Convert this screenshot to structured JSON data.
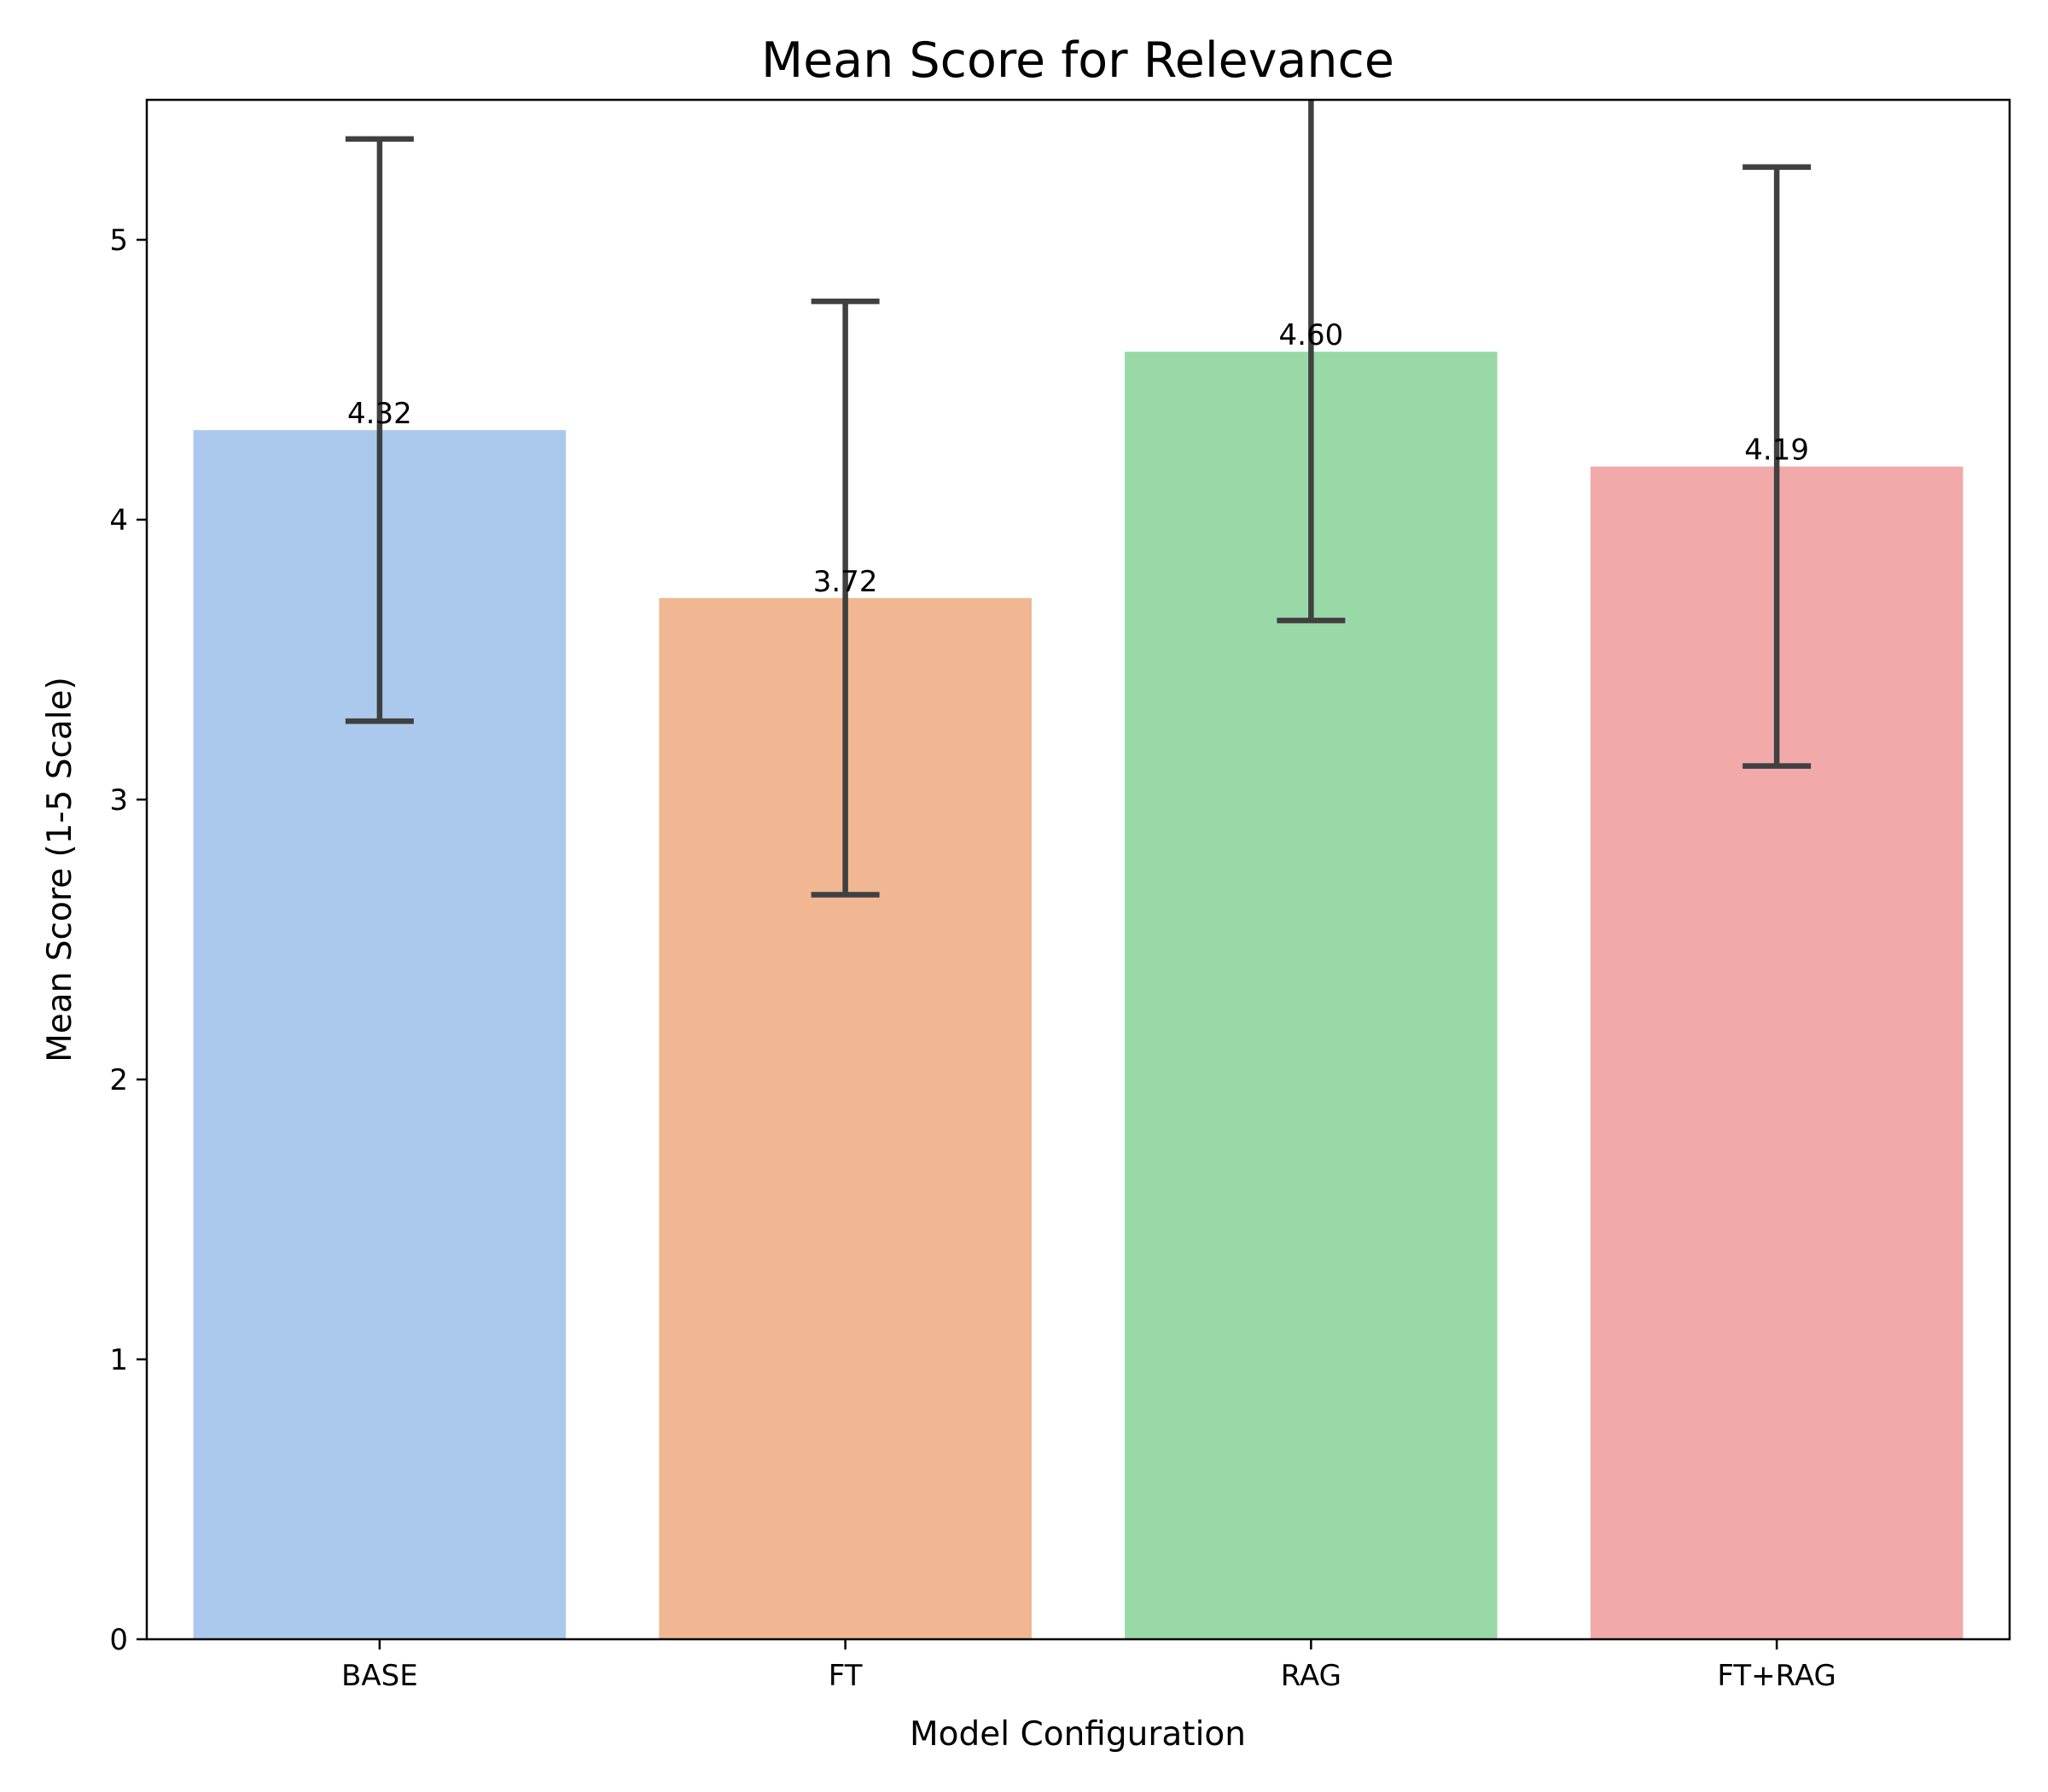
{
  "chart_data": {
    "type": "bar",
    "title": "Mean Score for Relevance",
    "xlabel": "Model Configuration",
    "ylabel": "Mean Score (1-5 Scale)",
    "categories": [
      "BASE",
      "FT",
      "RAG",
      "FT+RAG"
    ],
    "values": [
      4.32,
      3.72,
      4.6,
      4.19
    ],
    "data_labels": [
      "4.32",
      "3.72",
      "4.60",
      "4.19"
    ],
    "error_bars": [
      1.04,
      1.06,
      0.96,
      1.07
    ],
    "ylim": [
      0,
      5.5
    ],
    "yticks": [
      0,
      1,
      2,
      3,
      4,
      5
    ],
    "colors": [
      "#abc9ed",
      "#f0b792",
      "#99d9a8",
      "#f1aaa9"
    ],
    "error_bar_color": "#404040",
    "grid": false,
    "legend": "none"
  }
}
